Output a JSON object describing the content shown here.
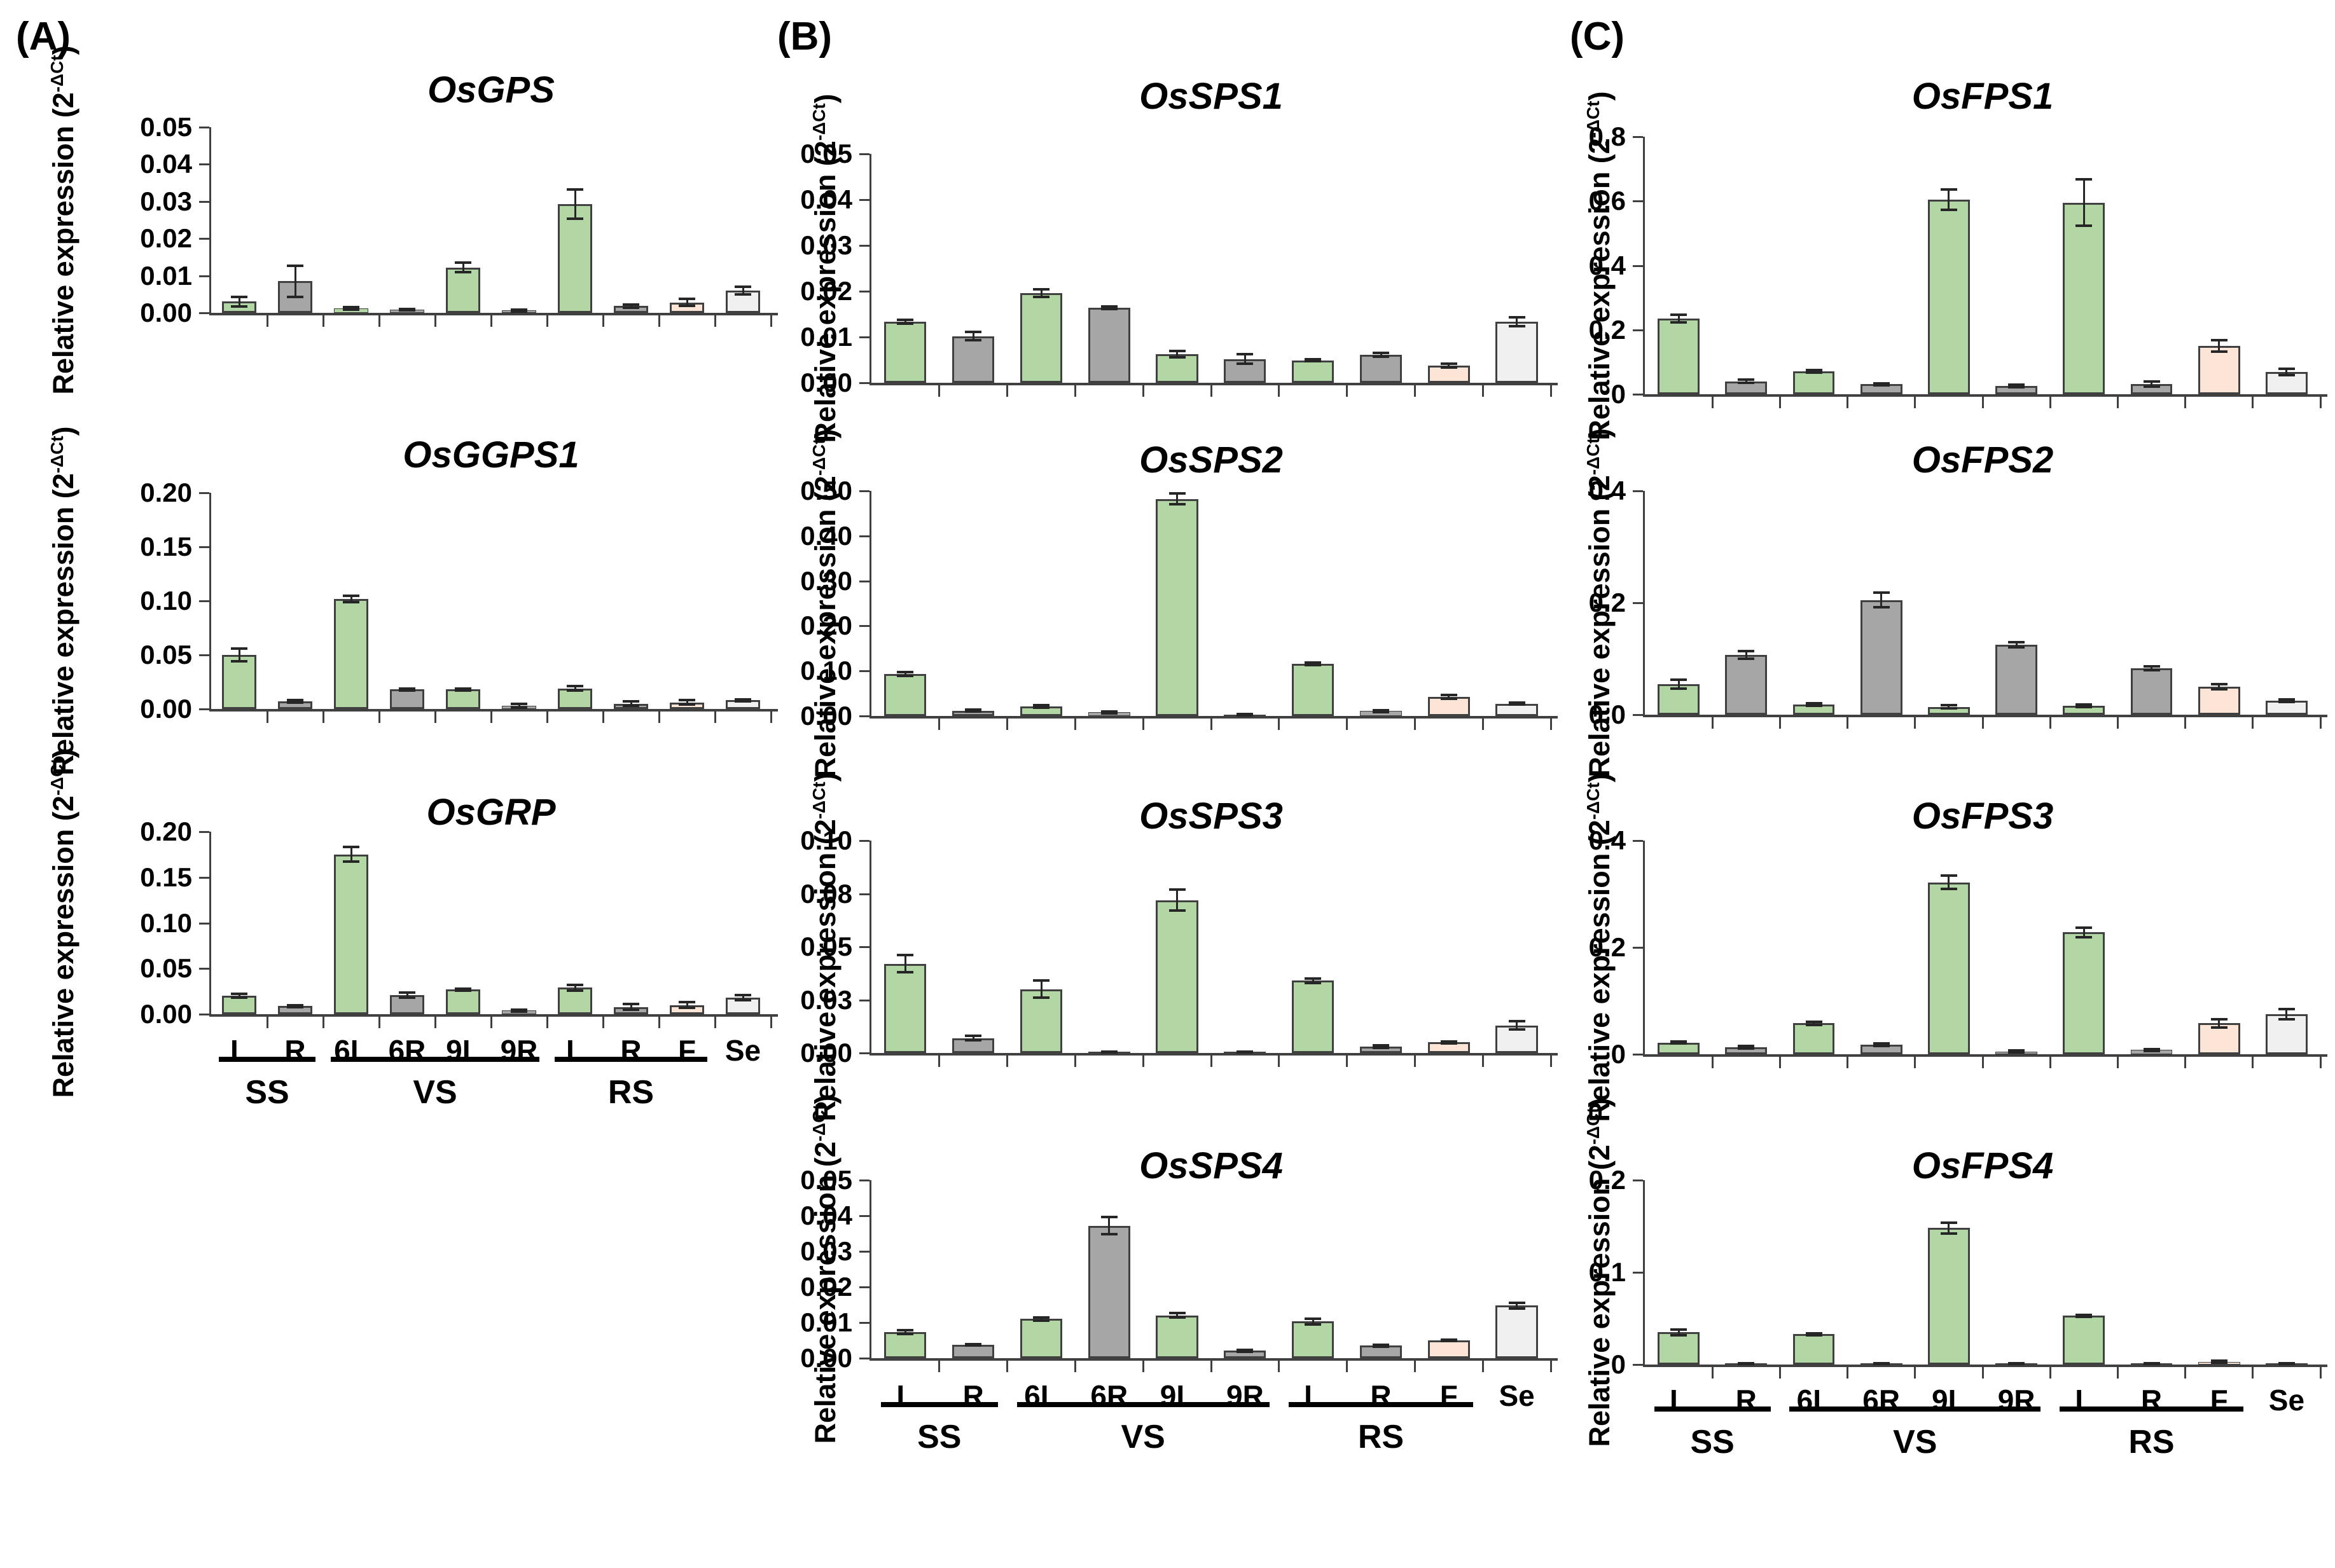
{
  "figure": {
    "panels": [
      {
        "id": "A",
        "label": "(A)"
      },
      {
        "id": "B",
        "label": "(B)"
      },
      {
        "id": "C",
        "label": "(C)"
      }
    ],
    "y_axis_label": {
      "prefix": "Relative expression (2",
      "sup": "-ΔCt",
      "suffix": ")"
    },
    "x_categories": [
      "L",
      "R",
      "6L",
      "6R",
      "9L",
      "9R",
      "L",
      "R",
      "F",
      "Se"
    ],
    "tissue_groups": [
      {
        "label": "SS",
        "from": 0,
        "to": 1
      },
      {
        "label": "VS",
        "from": 2,
        "to": 5
      },
      {
        "label": "RS",
        "from": 6,
        "to": 8
      }
    ],
    "colors": {
      "green_bar": "#b2d6a4",
      "gray_bar": "#a6a6a6",
      "peach_bar": "#fce4d6",
      "white_bar": "#f0f0f0",
      "bar_border": "#404040",
      "axis": "#404040",
      "error_bar": "#262626",
      "group_rule": "#000000"
    },
    "bar_color_pattern": [
      "green_bar",
      "gray_bar",
      "green_bar",
      "gray_bar",
      "green_bar",
      "gray_bar",
      "green_bar",
      "gray_bar",
      "peach_bar",
      "white_bar"
    ]
  },
  "chart_data": [
    {
      "type": "bar",
      "title": "OsGPS",
      "panel": "A",
      "row": 0,
      "ymax": 0.05,
      "yticks": [
        {
          "label": "0.05",
          "value": 0.05
        },
        {
          "label": "0.04",
          "value": 0.04
        },
        {
          "label": "0.03",
          "value": 0.03
        },
        {
          "label": "0.02",
          "value": 0.02
        },
        {
          "label": "0.01",
          "value": 0.01
        },
        {
          "label": "0.00",
          "value": 0.0
        }
      ],
      "categories": [
        "L",
        "R",
        "6L",
        "6R",
        "9L",
        "9R",
        "L",
        "R",
        "F",
        "Se"
      ],
      "values": [
        0.003,
        0.0085,
        0.0012,
        0.0008,
        0.0122,
        0.0006,
        0.0293,
        0.0018,
        0.0028,
        0.006
      ],
      "errors": [
        0.0013,
        0.0042,
        0.0004,
        0.0002,
        0.0013,
        0.0002,
        0.004,
        0.0004,
        0.001,
        0.001
      ],
      "show_x_labels": false
    },
    {
      "type": "bar",
      "title": "OsGGPS1",
      "panel": "A",
      "row": 1,
      "ymax": 0.2,
      "yticks": [
        {
          "label": "0.20",
          "value": 0.2
        },
        {
          "label": "0.15",
          "value": 0.15
        },
        {
          "label": "0.10",
          "value": 0.1
        },
        {
          "label": "0.05",
          "value": 0.05
        },
        {
          "label": "0.00",
          "value": 0.0
        }
      ],
      "categories": [
        "L",
        "R",
        "6L",
        "6R",
        "9L",
        "9R",
        "L",
        "R",
        "F",
        "Se"
      ],
      "values": [
        0.05,
        0.007,
        0.102,
        0.018,
        0.018,
        0.003,
        0.019,
        0.005,
        0.006,
        0.008
      ],
      "errors": [
        0.006,
        0.001,
        0.003,
        0.001,
        0.001,
        0.002,
        0.002,
        0.002,
        0.002,
        0.001
      ],
      "show_x_labels": false
    },
    {
      "type": "bar",
      "title": "OsGRP",
      "panel": "A",
      "row": 2,
      "ymax": 0.2,
      "yticks": [
        {
          "label": "0.20",
          "value": 0.2
        },
        {
          "label": "0.15",
          "value": 0.15
        },
        {
          "label": "0.10",
          "value": 0.1
        },
        {
          "label": "0.05",
          "value": 0.05
        },
        {
          "label": "0.00",
          "value": 0.0
        }
      ],
      "categories": [
        "L",
        "R",
        "6L",
        "6R",
        "9L",
        "9R",
        "L",
        "R",
        "F",
        "Se"
      ],
      "values": [
        0.02,
        0.009,
        0.175,
        0.021,
        0.027,
        0.004,
        0.029,
        0.008,
        0.01,
        0.018
      ],
      "errors": [
        0.002,
        0.001,
        0.008,
        0.003,
        0.001,
        0.001,
        0.003,
        0.003,
        0.003,
        0.003
      ],
      "show_x_labels": true
    },
    {
      "type": "bar",
      "title": "OsSPS1",
      "panel": "B",
      "row": 0,
      "ymax": 0.05,
      "yticks": [
        {
          "label": "0.05",
          "value": 0.05
        },
        {
          "label": "0.04",
          "value": 0.04
        },
        {
          "label": "0.03",
          "value": 0.03
        },
        {
          "label": "0.02",
          "value": 0.02
        },
        {
          "label": "0.01",
          "value": 0.01
        },
        {
          "label": "0.00",
          "value": 0.0
        }
      ],
      "categories": [
        "L",
        "R",
        "6L",
        "6R",
        "9L",
        "9R",
        "L",
        "R",
        "F",
        "Se"
      ],
      "values": [
        0.0133,
        0.0102,
        0.0196,
        0.0164,
        0.0063,
        0.0052,
        0.0049,
        0.0061,
        0.0038,
        0.0133
      ],
      "errors": [
        0.0004,
        0.0009,
        0.0008,
        0.0003,
        0.0007,
        0.001,
        0.0002,
        0.0004,
        0.0004,
        0.001
      ],
      "show_x_labels": false
    },
    {
      "type": "bar",
      "title": "OsSPS2",
      "panel": "B",
      "row": 1,
      "ymax": 0.5,
      "yticks": [
        {
          "label": "0.50",
          "value": 0.5
        },
        {
          "label": "0.40",
          "value": 0.4
        },
        {
          "label": "0.30",
          "value": 0.3
        },
        {
          "label": "0.20",
          "value": 0.2
        },
        {
          "label": "0.10",
          "value": 0.1
        },
        {
          "label": "0.00",
          "value": 0.0
        }
      ],
      "categories": [
        "L",
        "R",
        "6L",
        "6R",
        "9L",
        "9R",
        "L",
        "R",
        "F",
        "Se"
      ],
      "values": [
        0.093,
        0.012,
        0.021,
        0.008,
        0.482,
        0.003,
        0.116,
        0.011,
        0.042,
        0.027
      ],
      "errors": [
        0.004,
        0.002,
        0.003,
        0.002,
        0.012,
        0.001,
        0.003,
        0.002,
        0.004,
        0.002
      ],
      "show_x_labels": false
    },
    {
      "type": "bar",
      "title": "OsSPS3",
      "panel": "B",
      "row": 2,
      "ymax": 0.1,
      "yticks": [
        {
          "label": "0.10",
          "value": 0.1
        },
        {
          "label": "0.08",
          "value": 0.075
        },
        {
          "label": "0.05",
          "value": 0.05
        },
        {
          "label": "0.03",
          "value": 0.025
        },
        {
          "label": "0.00",
          "value": 0.0
        }
      ],
      "categories": [
        "L",
        "R",
        "6L",
        "6R",
        "9L",
        "9R",
        "L",
        "R",
        "F",
        "Se"
      ],
      "values": [
        0.042,
        0.007,
        0.03,
        0.0005,
        0.072,
        0.0005,
        0.034,
        0.003,
        0.005,
        0.013
      ],
      "errors": [
        0.004,
        0.001,
        0.004,
        0.0002,
        0.005,
        0.0002,
        0.001,
        0.0005,
        0.0005,
        0.002
      ],
      "show_x_labels": false
    },
    {
      "type": "bar",
      "title": "OsSPS4",
      "panel": "B",
      "row": 3,
      "ymax": 0.05,
      "yticks": [
        {
          "label": "0.05",
          "value": 0.05
        },
        {
          "label": "0.04",
          "value": 0.04
        },
        {
          "label": "0.03",
          "value": 0.03
        },
        {
          "label": "0.02",
          "value": 0.02
        },
        {
          "label": "0.01",
          "value": 0.01
        },
        {
          "label": "0.00",
          "value": 0.0
        }
      ],
      "categories": [
        "L",
        "R",
        "6L",
        "6R",
        "9L",
        "9R",
        "L",
        "R",
        "F",
        "Se"
      ],
      "values": [
        0.0073,
        0.0038,
        0.011,
        0.0372,
        0.012,
        0.0021,
        0.0103,
        0.0035,
        0.005,
        0.0148
      ],
      "errors": [
        0.0005,
        0.0002,
        0.0005,
        0.0024,
        0.0006,
        0.0003,
        0.0008,
        0.0002,
        0.0002,
        0.0008
      ],
      "show_x_labels": true
    },
    {
      "type": "bar",
      "title": "OsFPS1",
      "panel": "C",
      "row": 0,
      "ymax": 0.8,
      "yticks": [
        {
          "label": "0.8",
          "value": 0.8
        },
        {
          "label": "0.6",
          "value": 0.6
        },
        {
          "label": "0.4",
          "value": 0.4
        },
        {
          "label": "0.2",
          "value": 0.2
        },
        {
          "label": "0",
          "value": 0.0
        }
      ],
      "categories": [
        "L",
        "R",
        "6L",
        "6R",
        "9L",
        "9R",
        "L",
        "R",
        "F",
        "Se"
      ],
      "values": [
        0.235,
        0.04,
        0.072,
        0.031,
        0.605,
        0.025,
        0.595,
        0.032,
        0.15,
        0.07
      ],
      "errors": [
        0.012,
        0.005,
        0.004,
        0.003,
        0.032,
        0.004,
        0.072,
        0.008,
        0.018,
        0.01
      ],
      "show_x_labels": false
    },
    {
      "type": "bar",
      "title": "OsFPS2",
      "panel": "C",
      "row": 1,
      "ymax": 0.4,
      "yticks": [
        {
          "label": "0.4",
          "value": 0.4
        },
        {
          "label": "0.2",
          "value": 0.2
        },
        {
          "label": "0.0",
          "value": 0.0
        }
      ],
      "categories": [
        "L",
        "R",
        "6L",
        "6R",
        "9L",
        "9R",
        "L",
        "R",
        "F",
        "Se"
      ],
      "values": [
        0.055,
        0.107,
        0.018,
        0.205,
        0.014,
        0.125,
        0.016,
        0.083,
        0.05,
        0.025
      ],
      "errors": [
        0.008,
        0.007,
        0.002,
        0.013,
        0.003,
        0.004,
        0.002,
        0.003,
        0.004,
        0.002
      ],
      "show_x_labels": false
    },
    {
      "type": "bar",
      "title": "OsFPS3",
      "panel": "C",
      "row": 2,
      "ymax": 0.4,
      "yticks": [
        {
          "label": "0.4",
          "value": 0.4
        },
        {
          "label": "0.2",
          "value": 0.2
        },
        {
          "label": "0",
          "value": 0.0
        }
      ],
      "categories": [
        "L",
        "R",
        "6L",
        "6R",
        "9L",
        "9R",
        "L",
        "R",
        "F",
        "Se"
      ],
      "values": [
        0.022,
        0.013,
        0.058,
        0.018,
        0.322,
        0.005,
        0.228,
        0.008,
        0.058,
        0.075
      ],
      "errors": [
        0.002,
        0.002,
        0.003,
        0.002,
        0.012,
        0.002,
        0.009,
        0.002,
        0.008,
        0.01
      ],
      "show_x_labels": false
    },
    {
      "type": "bar",
      "title": "OsFPS4",
      "panel": "C",
      "row": 3,
      "ymax": 0.2,
      "yticks": [
        {
          "label": "0.2",
          "value": 0.2
        },
        {
          "label": "0.1",
          "value": 0.1
        },
        {
          "label": "0",
          "value": 0.0
        }
      ],
      "categories": [
        "L",
        "R",
        "6L",
        "6R",
        "9L",
        "9R",
        "L",
        "R",
        "F",
        "Se"
      ],
      "values": [
        0.035,
        0.001,
        0.033,
        0.001,
        0.148,
        0.001,
        0.053,
        0.001,
        0.003,
        0.001
      ],
      "errors": [
        0.003,
        0.0005,
        0.001,
        0.0005,
        0.006,
        0.0005,
        0.001,
        0.0005,
        0.001,
        0.0005
      ],
      "show_x_labels": true
    }
  ]
}
